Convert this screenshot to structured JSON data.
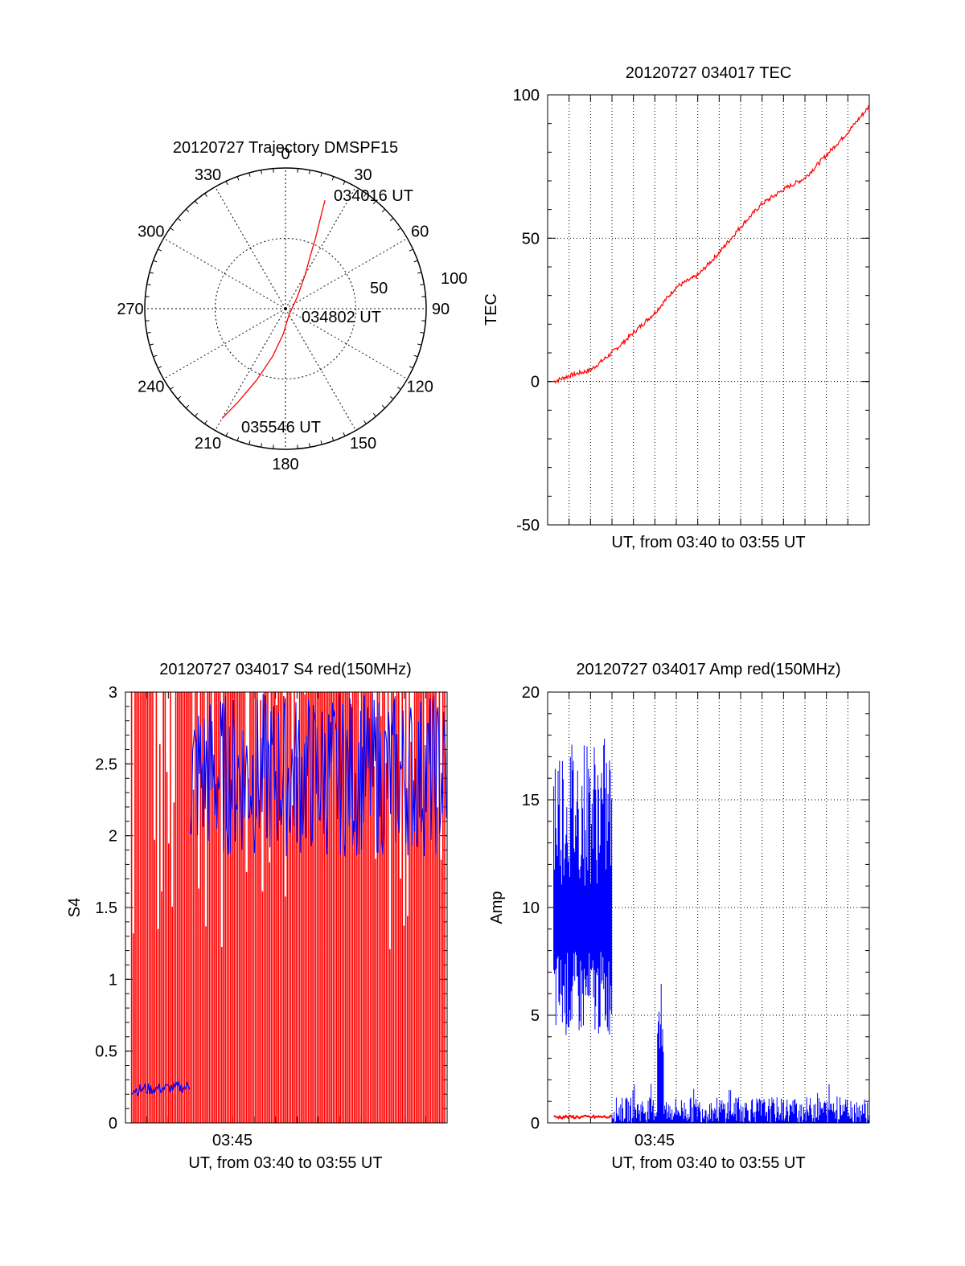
{
  "chart_data": [
    {
      "id": "trajectory",
      "type": "polar",
      "title": "20120727 Trajectory DMSPF15",
      "azimuth_labels": [
        "0",
        "30",
        "60",
        "90",
        "120",
        "150",
        "180",
        "210",
        "240",
        "270",
        "300",
        "330"
      ],
      "radial_labels": [
        "50",
        "100"
      ],
      "rlim": [
        0,
        100
      ],
      "grid": true,
      "series": [
        {
          "color": "#ff0000",
          "points": [
            {
              "az": 20,
              "r": 82
            },
            {
              "az": 21,
              "r": 70
            },
            {
              "az": 23,
              "r": 55
            },
            {
              "az": 25,
              "r": 42
            },
            {
              "az": 30,
              "r": 28
            },
            {
              "az": 45,
              "r": 12
            },
            {
              "az": 150,
              "r": 5
            },
            {
              "az": 185,
              "r": 18
            },
            {
              "az": 195,
              "r": 35
            },
            {
              "az": 202,
              "r": 55
            },
            {
              "az": 207,
              "r": 75
            },
            {
              "az": 210,
              "r": 90
            }
          ]
        }
      ],
      "annotations": [
        {
          "text": "034016 UT",
          "az": 25,
          "r": 82
        },
        {
          "text": "034802 UT",
          "az": 95,
          "r": 15
        },
        {
          "text": "035546 UT",
          "az": 190,
          "r": 85
        }
      ]
    },
    {
      "id": "tec",
      "type": "line",
      "title": "20120727 034017 TEC",
      "xlabel": "UT, from 03:40 to 03:55 UT",
      "ylabel": "TEC",
      "xlim": [
        "03:40",
        "03:55"
      ],
      "ylim": [
        -50,
        100
      ],
      "yticks": [
        "100",
        "50",
        "0",
        "-50"
      ],
      "grid": true,
      "series": [
        {
          "color": "#ff0000",
          "x": [
            "03:40:17",
            "03:41:00",
            "03:42:00",
            "03:43:00",
            "03:44:00",
            "03:45:00",
            "03:46:00",
            "03:47:00",
            "03:48:00",
            "03:49:00",
            "03:50:00",
            "03:51:00",
            "03:52:00",
            "03:53:00",
            "03:54:00",
            "03:55:00"
          ],
          "values": [
            0,
            2,
            4,
            10,
            17,
            24,
            33,
            37,
            45,
            54,
            62,
            67,
            71,
            79,
            87,
            96
          ]
        }
      ]
    },
    {
      "id": "s4",
      "type": "line",
      "title": "20120727 034017 S4 red(150MHz)",
      "xlabel": "UT, from 03:40 to 03:55 UT",
      "ylabel": "S4",
      "xlim": [
        "03:40",
        "03:55"
      ],
      "ylim": [
        0,
        3
      ],
      "xticks": [
        "03:45"
      ],
      "yticks": [
        "3",
        "2.5",
        "2",
        "1.5",
        "1",
        "0.5",
        "0"
      ],
      "grid": false,
      "series": [
        {
          "color": "#ff0000",
          "range": [
            0,
            3
          ],
          "pattern": "saturated spikes spanning 0 to 3 throughout the interval"
        },
        {
          "color": "#0000ff",
          "x": [
            "03:40:17",
            "03:43:00"
          ],
          "values": [
            0.23,
            0.25
          ],
          "note": "low level early segment"
        },
        {
          "color": "#0000ff",
          "x": [
            "03:43:00",
            "03:55:00"
          ],
          "range": [
            1.5,
            3
          ],
          "pattern": "dense band between about 1.5 and 3"
        }
      ]
    },
    {
      "id": "amp",
      "type": "line",
      "title": "20120727 034017 Amp red(150MHz)",
      "xlabel": "UT, from 03:40 to 03:55 UT",
      "ylabel": "Amp",
      "xlim": [
        "03:40",
        "03:55"
      ],
      "ylim": [
        0,
        20
      ],
      "xticks": [
        "03:45"
      ],
      "yticks": [
        "20",
        "15",
        "10",
        "5",
        "0"
      ],
      "grid": true,
      "series": [
        {
          "color": "#0000ff",
          "x": [
            "03:40:17",
            "03:43:00"
          ],
          "range": [
            2,
            18
          ],
          "pattern": "dense noise about 10"
        },
        {
          "color": "#0000ff",
          "x": [
            "03:43:00",
            "03:55:00"
          ],
          "range": [
            0,
            1.5
          ],
          "pattern": "low noise with a burst to about 6.5 near 03:45"
        },
        {
          "color": "#ff0000",
          "x": [
            "03:40:17",
            "03:43:00"
          ],
          "values": [
            0.2,
            0.2
          ]
        }
      ]
    }
  ]
}
